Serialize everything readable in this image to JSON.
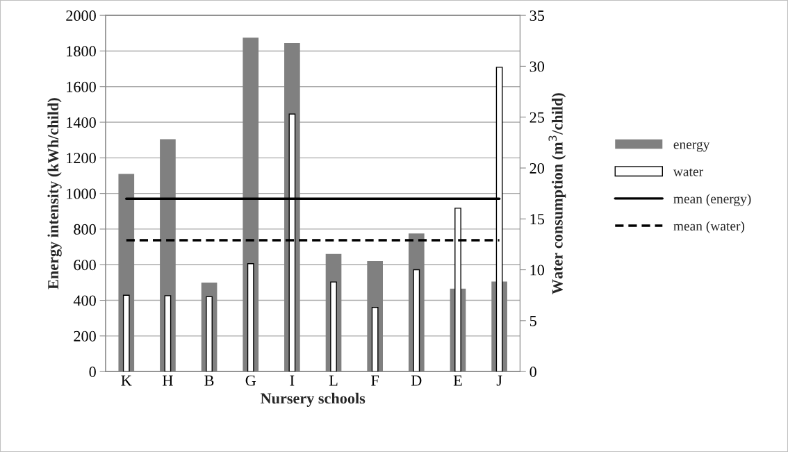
{
  "chart_data": {
    "type": "bar",
    "xlabel": "Nursery schools",
    "ylabel": "Energy intensity (kWh/child)",
    "y2label": "Water consumption (m$^{3}$/child)",
    "categories": [
      "K",
      "H",
      "B",
      "G",
      "I",
      "L",
      "F",
      "D",
      "E",
      "J"
    ],
    "series": [
      {
        "name": "energy",
        "color": "#808080",
        "values": [
          1110,
          1305,
          500,
          1875,
          1845,
          660,
          620,
          775,
          465,
          505
        ]
      },
      {
        "name": "water",
        "axis": "y2",
        "color": "#ffffff",
        "values": [
          7.5,
          7.45,
          7.35,
          10.6,
          25.3,
          8.8,
          6.3,
          10.0,
          16.05,
          29.9
        ]
      },
      {
        "name": "mean (energy)",
        "type": "line",
        "color": "#000000",
        "line_style": "solid",
        "values": [
          970,
          970,
          970,
          970,
          970,
          970,
          970,
          970,
          970,
          970
        ]
      },
      {
        "name": "mean (water)",
        "type": "line",
        "axis": "y2",
        "color": "#000000",
        "line_style": "dashed",
        "values": [
          12.9,
          12.9,
          12.9,
          12.9,
          12.9,
          12.9,
          12.9,
          12.9,
          12.9,
          12.9
        ]
      }
    ],
    "ylim": [
      0,
      2000
    ],
    "yticks": [
      0,
      200,
      400,
      600,
      800,
      1000,
      1200,
      1400,
      1600,
      1800,
      2000
    ],
    "y2lim": [
      0,
      35
    ],
    "y2ticks": [
      0,
      5,
      10,
      15,
      20,
      25,
      30,
      35
    ],
    "grid": "y",
    "legend": "right"
  }
}
